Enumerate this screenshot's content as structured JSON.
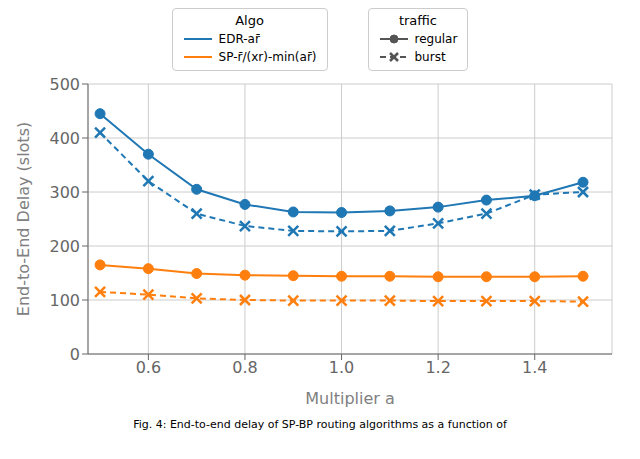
{
  "chart_data": {
    "type": "line",
    "xlabel": "Multiplier a",
    "ylabel": "End-to-End Delay (slots)",
    "caption": "Fig. 4: End-to-end delay of SP-BP routing algorithms as a function of",
    "x": [
      0.5,
      0.6,
      0.7,
      0.8,
      0.9,
      1.0,
      1.1,
      1.2,
      1.3,
      1.4,
      1.5
    ],
    "xlim": [
      0.475,
      1.56
    ],
    "xticks": [
      0.6,
      0.8,
      {
        "value": 1.0,
        "label": "1.0"
      },
      1.2,
      1.4
    ],
    "ylim": [
      0,
      500
    ],
    "yticks": [
      0,
      100,
      200,
      300,
      400,
      500
    ],
    "grid": true,
    "series": [
      {
        "color": "#1f77b4",
        "marker": "circle",
        "line_style": "solid",
        "values": [
          445,
          370,
          305,
          277,
          263,
          262,
          265,
          272,
          285,
          293,
          318
        ]
      },
      {
        "color": "#1f77b4",
        "marker": "x",
        "line_style": "dashed",
        "values": [
          410,
          320,
          260,
          237,
          228,
          227,
          228,
          242,
          260,
          295,
          300
        ]
      },
      {
        "color": "#ff7f0e",
        "marker": "circle",
        "line_style": "solid",
        "values": [
          165,
          158,
          149,
          146,
          145,
          144,
          144,
          143,
          143,
          143,
          144
        ]
      },
      {
        "color": "#ff7f0e",
        "marker": "x",
        "line_style": "dashed",
        "values": [
          115,
          110,
          103,
          100,
          99,
          99,
          99,
          98,
          98,
          98,
          97
        ]
      }
    ],
    "legends": [
      {
        "title": "Algo",
        "entries": [
          {
            "label": "EDR-ar̄",
            "color": "#1f77b4",
            "line_style": "solid"
          },
          {
            "label": "SP-r̄/(xr)-min(ar̄)",
            "color": "#ff7f0e",
            "line_style": "solid"
          }
        ]
      },
      {
        "title": "traffic",
        "entries": [
          {
            "label": "regular",
            "color": "#555555",
            "line_style": "solid",
            "marker": "circle"
          },
          {
            "label": "burst",
            "color": "#555555",
            "line_style": "dashed",
            "marker": "x"
          }
        ]
      }
    ]
  }
}
